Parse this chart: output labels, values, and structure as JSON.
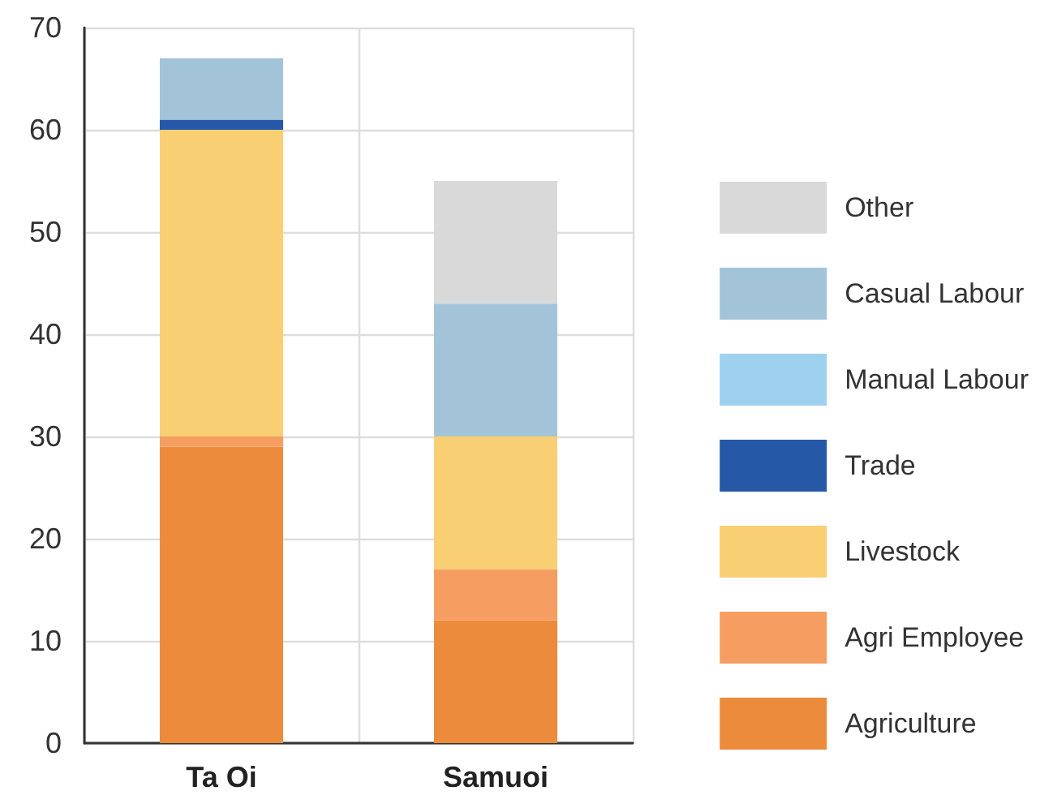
{
  "chart_data": {
    "type": "bar",
    "stacked": true,
    "categories": [
      "Ta Oi",
      "Samuoi"
    ],
    "series": [
      {
        "name": "Agriculture",
        "color": "#ed8b3c",
        "values": [
          29,
          12
        ]
      },
      {
        "name": "Agri Employee",
        "color": "#f69e62",
        "values": [
          1,
          5
        ]
      },
      {
        "name": "Livestock",
        "color": "#f9cf74",
        "values": [
          30,
          13
        ]
      },
      {
        "name": "Trade",
        "color": "#2559a8",
        "values": [
          1,
          0
        ]
      },
      {
        "name": "Manual Labour",
        "color": "#9dd1ef",
        "values": [
          0,
          0
        ]
      },
      {
        "name": "Casual Labour",
        "color": "#a3c4d8",
        "values": [
          6,
          13
        ]
      },
      {
        "name": "Other",
        "color": "#d9d9d9",
        "values": [
          0,
          12
        ]
      }
    ],
    "ylim": [
      0,
      70
    ],
    "yticks": [
      0,
      10,
      20,
      30,
      40,
      50,
      60,
      70
    ],
    "grid": true,
    "legend": "right"
  }
}
